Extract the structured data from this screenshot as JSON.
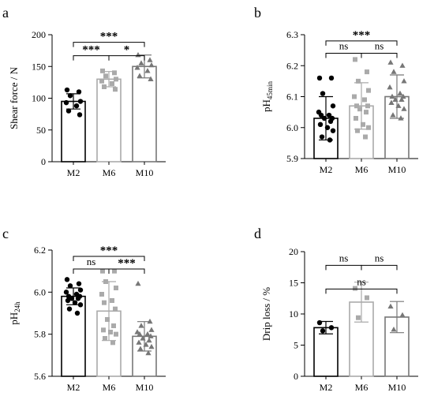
{
  "colors": {
    "M2": "#000000",
    "M6": "#aaaaaa",
    "M10": "#777777",
    "axis": "#000000"
  },
  "chart_data": [
    {
      "panel": "a",
      "type": "bar",
      "ylabel": "Shear force / N",
      "categories": [
        "M2",
        "M6",
        "M10"
      ],
      "yticks": [
        "0",
        "50",
        "100",
        "150",
        "200"
      ],
      "ylim": [
        0,
        200
      ],
      "markers": [
        "circle",
        "square",
        "triangle"
      ],
      "values": [
        95,
        130,
        150
      ],
      "errors": [
        12,
        12,
        18
      ],
      "points": [
        [
          113,
          110,
          104,
          95,
          93,
          88,
          80,
          74
        ],
        [
          143,
          140,
          135,
          130,
          127,
          123,
          118,
          114
        ],
        [
          168,
          160,
          155,
          152,
          148,
          143,
          135,
          130
        ]
      ],
      "brackets": [
        {
          "from": 0,
          "to": 2,
          "y": 188,
          "label": "***"
        },
        {
          "from": 0,
          "to": 1,
          "y": 167,
          "label": "***"
        },
        {
          "from": 1,
          "to": 2,
          "y": 167,
          "label": "*"
        }
      ]
    },
    {
      "panel": "b",
      "type": "bar",
      "ylabel": "pH",
      "ylabel_sub": "45min",
      "categories": [
        "M2",
        "M6",
        "M10"
      ],
      "yticks": [
        "5.9",
        "6.0",
        "6.1",
        "6.2",
        "6.3"
      ],
      "ylim": [
        5.9,
        6.3
      ],
      "markers": [
        "circle",
        "square",
        "triangle"
      ],
      "values": [
        6.03,
        6.07,
        6.1
      ],
      "errors": [
        0.07,
        0.075,
        0.07
      ],
      "points": [
        [
          6.16,
          6.16,
          6.11,
          6.07,
          6.05,
          6.04,
          6.04,
          6.03,
          6.03,
          6.02,
          6.01,
          6.0,
          5.99,
          5.97,
          5.96
        ],
        [
          6.22,
          6.18,
          6.15,
          6.12,
          6.1,
          6.09,
          6.07,
          6.07,
          6.06,
          6.05,
          6.03,
          6.01,
          6.0,
          5.99,
          5.97
        ],
        [
          6.21,
          6.2,
          6.18,
          6.15,
          6.13,
          6.11,
          6.1,
          6.1,
          6.09,
          6.09,
          6.08,
          6.07,
          6.06,
          6.04,
          6.03
        ]
      ],
      "brackets": [
        {
          "from": 0,
          "to": 2,
          "y": 6.28,
          "label": "***"
        },
        {
          "from": 0,
          "to": 1,
          "y": 6.24,
          "label": "ns"
        },
        {
          "from": 1,
          "to": 2,
          "y": 6.24,
          "label": "ns"
        }
      ]
    },
    {
      "panel": "c",
      "type": "bar",
      "ylabel": "pH",
      "ylabel_sub": "24h",
      "categories": [
        "M2",
        "M6",
        "M10"
      ],
      "yticks": [
        "5.6",
        "5.8",
        "6.0",
        "6.2"
      ],
      "ylim": [
        5.6,
        6.2
      ],
      "markers": [
        "circle",
        "square",
        "triangle"
      ],
      "values": [
        5.98,
        5.91,
        5.79
      ],
      "errors": [
        0.04,
        0.14,
        0.07
      ],
      "points": [
        [
          6.06,
          6.04,
          6.03,
          6.01,
          6.0,
          5.99,
          5.98,
          5.98,
          5.97,
          5.97,
          5.96,
          5.95,
          5.94,
          5.92,
          5.9
        ],
        [
          6.1,
          6.1,
          6.05,
          6.02,
          5.99,
          5.96,
          5.95,
          5.92,
          5.87,
          5.84,
          5.82,
          5.81,
          5.8,
          5.78,
          5.76
        ],
        [
          6.04,
          5.86,
          5.84,
          5.82,
          5.81,
          5.8,
          5.8,
          5.79,
          5.78,
          5.77,
          5.76,
          5.75,
          5.74,
          5.73,
          5.71
        ]
      ],
      "brackets": [
        {
          "from": 0,
          "to": 2,
          "y": 6.17,
          "label": "***"
        },
        {
          "from": 0,
          "to": 1,
          "y": 6.11,
          "label": "ns"
        },
        {
          "from": 1,
          "to": 2,
          "y": 6.11,
          "label": "***"
        }
      ]
    },
    {
      "panel": "d",
      "type": "bar",
      "ylabel": "Drip loss / %",
      "categories": [
        "M2",
        "M6",
        "M10"
      ],
      "yticks": [
        "0",
        "5",
        "10",
        "15",
        "20"
      ],
      "ylim": [
        0,
        20
      ],
      "markers": [
        "circle",
        "square",
        "triangle"
      ],
      "values": [
        7.8,
        11.9,
        9.5
      ],
      "errors": [
        1.0,
        3.2,
        2.5
      ],
      "points": [
        [
          8.6,
          7.8,
          7.3
        ],
        [
          14.1,
          12.6,
          9.4
        ],
        [
          11.2,
          9.8,
          7.5
        ]
      ],
      "brackets": [
        {
          "from": 0,
          "to": 1,
          "y": 17.8,
          "label": "ns"
        },
        {
          "from": 1,
          "to": 2,
          "y": 17.8,
          "label": "ns"
        },
        {
          "from": 0,
          "to": 2,
          "y": 14.0,
          "label": "ns"
        }
      ]
    }
  ]
}
